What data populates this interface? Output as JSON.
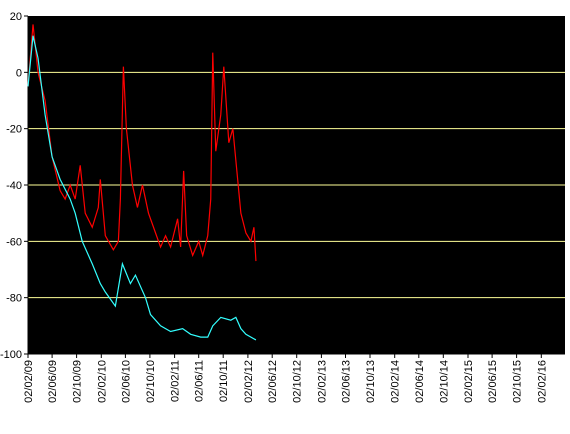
{
  "chart_data": {
    "type": "line",
    "xlim": [
      "2009-02-02",
      "2016-05-30"
    ],
    "xticks": [
      {
        "value": "2009-02-02",
        "label": "02/02/09"
      },
      {
        "value": "2009-06-02",
        "label": "02/06/09"
      },
      {
        "value": "2009-10-02",
        "label": "02/10/09"
      },
      {
        "value": "2010-02-02",
        "label": "02/02/10"
      },
      {
        "value": "2010-06-02",
        "label": "02/06/10"
      },
      {
        "value": "2010-10-02",
        "label": "02/10/10"
      },
      {
        "value": "2011-02-02",
        "label": "02/02/11"
      },
      {
        "value": "2011-06-02",
        "label": "02/06/11"
      },
      {
        "value": "2011-10-02",
        "label": "02/10/11"
      },
      {
        "value": "2012-02-02",
        "label": "02/02/12"
      },
      {
        "value": "2012-06-02",
        "label": "02/06/12"
      },
      {
        "value": "2012-10-02",
        "label": "02/10/12"
      },
      {
        "value": "2013-02-02",
        "label": "02/02/13"
      },
      {
        "value": "2013-06-02",
        "label": "02/06/13"
      },
      {
        "value": "2013-10-02",
        "label": "02/10/13"
      },
      {
        "value": "2014-02-02",
        "label": "02/02/14"
      },
      {
        "value": "2014-06-02",
        "label": "02/06/14"
      },
      {
        "value": "2014-10-02",
        "label": "02/10/14"
      },
      {
        "value": "2015-02-02",
        "label": "02/02/15"
      },
      {
        "value": "2015-06-02",
        "label": "02/06/15"
      },
      {
        "value": "2015-10-02",
        "label": "02/10/15"
      },
      {
        "value": "2016-02-02",
        "label": "02/02/16"
      }
    ],
    "ylim": [
      -100,
      20
    ],
    "yticks": [
      -100,
      -80,
      -60,
      -40,
      -20,
      0,
      20
    ],
    "grid": true,
    "grid_color": "#ffff99",
    "background": "#000000",
    "series": [
      {
        "color": "#ff0000",
        "x": [
          "2009-02-02",
          "2009-02-27",
          "2009-03-24",
          "2009-04-28",
          "2009-06-02",
          "2009-07-12",
          "2009-08-06",
          "2009-08-31",
          "2009-09-25",
          "2009-10-20",
          "2009-11-14",
          "2009-12-19",
          "2010-01-18",
          "2010-01-28",
          "2010-02-22",
          "2010-04-03",
          "2010-04-28",
          "2010-05-08",
          "2010-05-23",
          "2010-06-07",
          "2010-07-07",
          "2010-08-01",
          "2010-08-26",
          "2010-09-25",
          "2010-10-20",
          "2010-11-24",
          "2010-12-19",
          "2011-01-13",
          "2011-02-17",
          "2011-03-04",
          "2011-03-19",
          "2011-04-03",
          "2011-05-03",
          "2011-06-02",
          "2011-06-22",
          "2011-07-17",
          "2011-08-01",
          "2011-08-11",
          "2011-08-26",
          "2011-09-20",
          "2011-10-05",
          "2011-10-30",
          "2011-11-19",
          "2011-12-09",
          "2011-12-29",
          "2012-01-23",
          "2012-02-17",
          "2012-03-03",
          "2012-03-13"
        ],
        "values": [
          -5,
          17,
          0,
          -10,
          -30,
          -42,
          -45,
          -40,
          -45,
          -33,
          -50,
          -55,
          -48,
          -38,
          -58,
          -63,
          -60,
          -45,
          2,
          -20,
          -40,
          -48,
          -40,
          -50,
          -55,
          -62,
          -58,
          -62,
          -52,
          -62,
          -35,
          -58,
          -65,
          -60,
          -65,
          -58,
          -45,
          7,
          -28,
          -15,
          2,
          -25,
          -20,
          -35,
          -50,
          -57,
          -60,
          -55,
          -67
        ]
      },
      {
        "color": "#33ffff",
        "x": [
          "2009-02-02",
          "2009-02-27",
          "2009-03-24",
          "2009-04-28",
          "2009-06-02",
          "2009-07-12",
          "2009-08-31",
          "2009-09-25",
          "2009-10-30",
          "2009-12-19",
          "2010-01-28",
          "2010-02-22",
          "2010-04-13",
          "2010-05-18",
          "2010-06-27",
          "2010-07-22",
          "2010-09-10",
          "2010-10-05",
          "2010-11-24",
          "2011-01-13",
          "2011-03-14",
          "2011-04-23",
          "2011-06-12",
          "2011-07-17",
          "2011-08-11",
          "2011-09-20",
          "2011-11-09",
          "2011-12-04",
          "2011-12-29",
          "2012-01-23",
          "2012-03-13"
        ],
        "values": [
          -5,
          13,
          5,
          -15,
          -30,
          -38,
          -45,
          -50,
          -60,
          -68,
          -75,
          -78,
          -83,
          -68,
          -75,
          -72,
          -80,
          -86,
          -90,
          -92,
          -91,
          -93,
          -94,
          -94,
          -90,
          -87,
          -88,
          -87,
          -91,
          -93,
          -95
        ]
      }
    ]
  }
}
